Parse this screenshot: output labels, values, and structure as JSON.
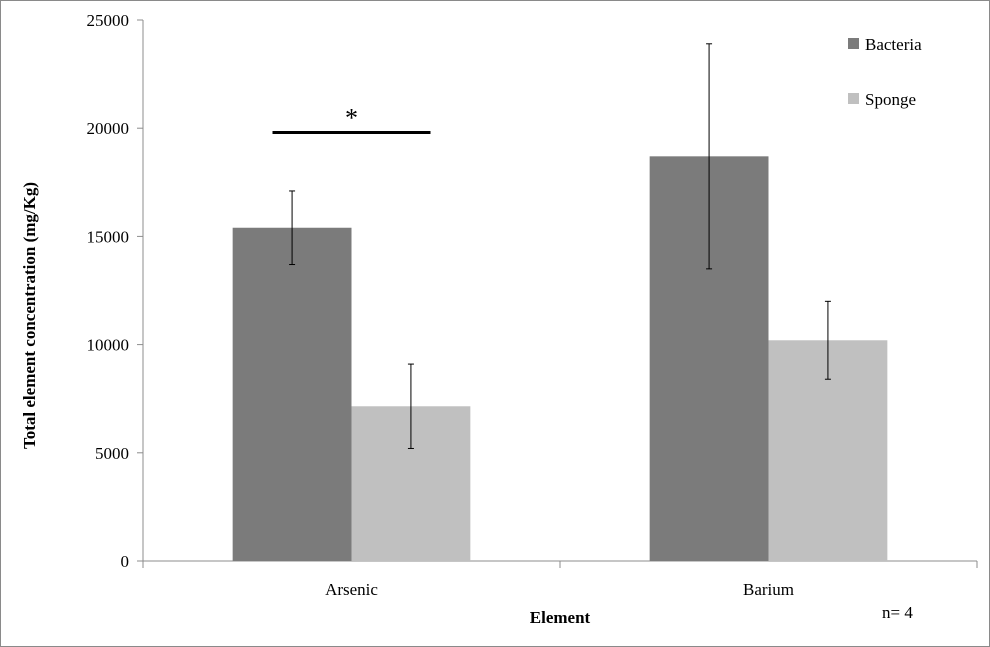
{
  "chart_data": {
    "type": "bar",
    "categories": [
      "Arsenic",
      "Barium"
    ],
    "series": [
      {
        "name": "Bacteria",
        "color": "#7b7b7b",
        "values": [
          15400,
          18700
        ],
        "errors": [
          1700,
          5200
        ]
      },
      {
        "name": "Sponge",
        "color": "#c0c0c0",
        "values": [
          7150,
          10200
        ],
        "errors": [
          1950,
          1800
        ]
      }
    ],
    "xlabel": "Element",
    "ylabel": "Total element concentration (mg/Kg)",
    "ylim": [
      0,
      25000
    ],
    "yticks": [
      0,
      5000,
      10000,
      15000,
      20000,
      25000
    ],
    "ytick_labels": [
      "0",
      "5000",
      "10000",
      "15000",
      "20000",
      "25000"
    ],
    "grid": false,
    "legend_position": "top-right",
    "annotations": {
      "significance_marker": "*",
      "significance_category": "Arsenic",
      "significance_level": 19800,
      "sample_size": "n= 4"
    }
  }
}
